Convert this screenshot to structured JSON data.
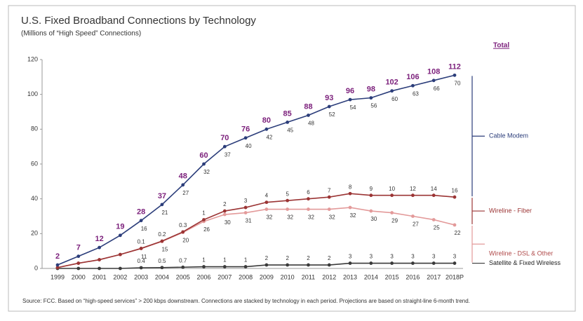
{
  "chart_data": {
    "type": "stacked_line",
    "title": "U.S. Fixed Broadband Connections by Technology",
    "subtitle": "(Millions of “High Speed” Connections)",
    "source": "Source:  FCC. Based on “high-speed services” > 200 kbps downstream. Connections are stacked by technology in each period. Projections are based on straight-line 6-month trend.",
    "totals_label": "Total",
    "categories": [
      "1999",
      "2000",
      "2001",
      "2002",
      "2003",
      "2004",
      "2005",
      "2006",
      "2007",
      "2008",
      "2009",
      "2010",
      "2011",
      "2012",
      "2013",
      "2014",
      "2015",
      "2016",
      "2017",
      "2018P"
    ],
    "totals": [
      2,
      7,
      12,
      19,
      28,
      37,
      48,
      60,
      70,
      76,
      80,
      85,
      88,
      93,
      96,
      98,
      102,
      106,
      108,
      112
    ],
    "series": [
      {
        "name": "Satellite & Fixed Wireless",
        "color": "#3a3a3a",
        "values": [
          0,
          0,
          0,
          0,
          0.4,
          0.5,
          0.7,
          1,
          1,
          1,
          2,
          2,
          2,
          2,
          3,
          3,
          3,
          3,
          3,
          3
        ],
        "value_labels": [
          null,
          null,
          null,
          null,
          "0.4",
          "0.5",
          "0.7",
          "1",
          "1",
          "1",
          "2",
          "2",
          "2",
          "2",
          "3",
          "3",
          "3",
          "3",
          "3",
          "3"
        ]
      },
      {
        "name": "Wireline - DSL & Other",
        "color": "#e39a9a",
        "values": [
          0.5,
          3,
          5,
          8,
          11,
          15,
          20,
          26,
          30,
          31,
          32,
          32,
          32,
          32,
          32,
          30,
          29,
          27,
          25,
          22
        ],
        "value_labels": [
          null,
          null,
          null,
          null,
          "11",
          "15",
          "20",
          "26",
          "30",
          "31",
          "32",
          "32",
          "32",
          "32",
          "32",
          "30",
          "29",
          "27",
          "25",
          "22"
        ]
      },
      {
        "name": "Wireline - Fiber",
        "color": "#9b3434",
        "values": [
          0,
          0,
          0,
          0,
          0.1,
          0.2,
          0.3,
          1,
          2,
          3,
          4,
          5,
          6,
          7,
          8,
          9,
          10,
          12,
          14,
          16
        ],
        "value_labels": [
          null,
          null,
          null,
          null,
          "0.1",
          "0.2",
          "0.3",
          "1",
          "2",
          "3",
          "4",
          "5",
          "6",
          "7",
          "8",
          "9",
          "10",
          "12",
          "14",
          "16"
        ]
      },
      {
        "name": "Cable Modem",
        "color": "#2b3d7a",
        "values": [
          1.5,
          4,
          7,
          11,
          16,
          21,
          27,
          32,
          37,
          40,
          42,
          45,
          48,
          52,
          54,
          56,
          60,
          63,
          66,
          70
        ],
        "value_labels": [
          null,
          null,
          null,
          null,
          "16",
          "21",
          "27",
          "32",
          "37",
          "40",
          "42",
          "45",
          "48",
          "52",
          "54",
          "56",
          "60",
          "63",
          "66",
          "70"
        ]
      }
    ],
    "ylim": [
      0,
      120
    ],
    "yticks": [
      0,
      20,
      40,
      60,
      80,
      100,
      120
    ]
  }
}
